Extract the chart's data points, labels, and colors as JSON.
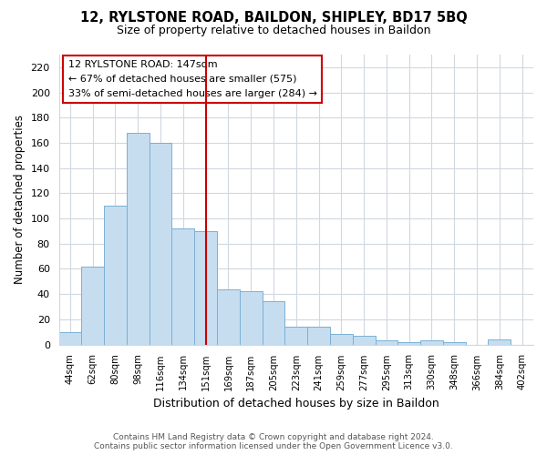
{
  "title": "12, RYLSTONE ROAD, BAILDON, SHIPLEY, BD17 5BQ",
  "subtitle": "Size of property relative to detached houses in Baildon",
  "xlabel": "Distribution of detached houses by size in Baildon",
  "ylabel": "Number of detached properties",
  "categories": [
    "44sqm",
    "62sqm",
    "80sqm",
    "98sqm",
    "116sqm",
    "134sqm",
    "151sqm",
    "169sqm",
    "187sqm",
    "205sqm",
    "223sqm",
    "241sqm",
    "259sqm",
    "277sqm",
    "295sqm",
    "313sqm",
    "330sqm",
    "348sqm",
    "366sqm",
    "384sqm",
    "402sqm"
  ],
  "values": [
    10,
    62,
    110,
    168,
    160,
    92,
    90,
    44,
    42,
    34,
    14,
    14,
    8,
    7,
    3,
    2,
    3,
    2,
    0,
    4,
    0
  ],
  "bar_color": "#c6ddf0",
  "bar_edge_color": "#7ab0d4",
  "vline_index": 6,
  "vline_color": "#cc0000",
  "annotation_title": "12 RYLSTONE ROAD: 147sqm",
  "annotation_line1": "← 67% of detached houses are smaller (575)",
  "annotation_line2": "33% of semi-detached houses are larger (284) →",
  "annotation_box_color": "#ffffff",
  "annotation_box_edge": "#cc0000",
  "ylim": [
    0,
    230
  ],
  "yticks": [
    0,
    20,
    40,
    60,
    80,
    100,
    120,
    140,
    160,
    180,
    200,
    220
  ],
  "footer1": "Contains HM Land Registry data © Crown copyright and database right 2024.",
  "footer2": "Contains public sector information licensed under the Open Government Licence v3.0.",
  "bg_color": "#ffffff",
  "grid_color": "#d0d8e0"
}
